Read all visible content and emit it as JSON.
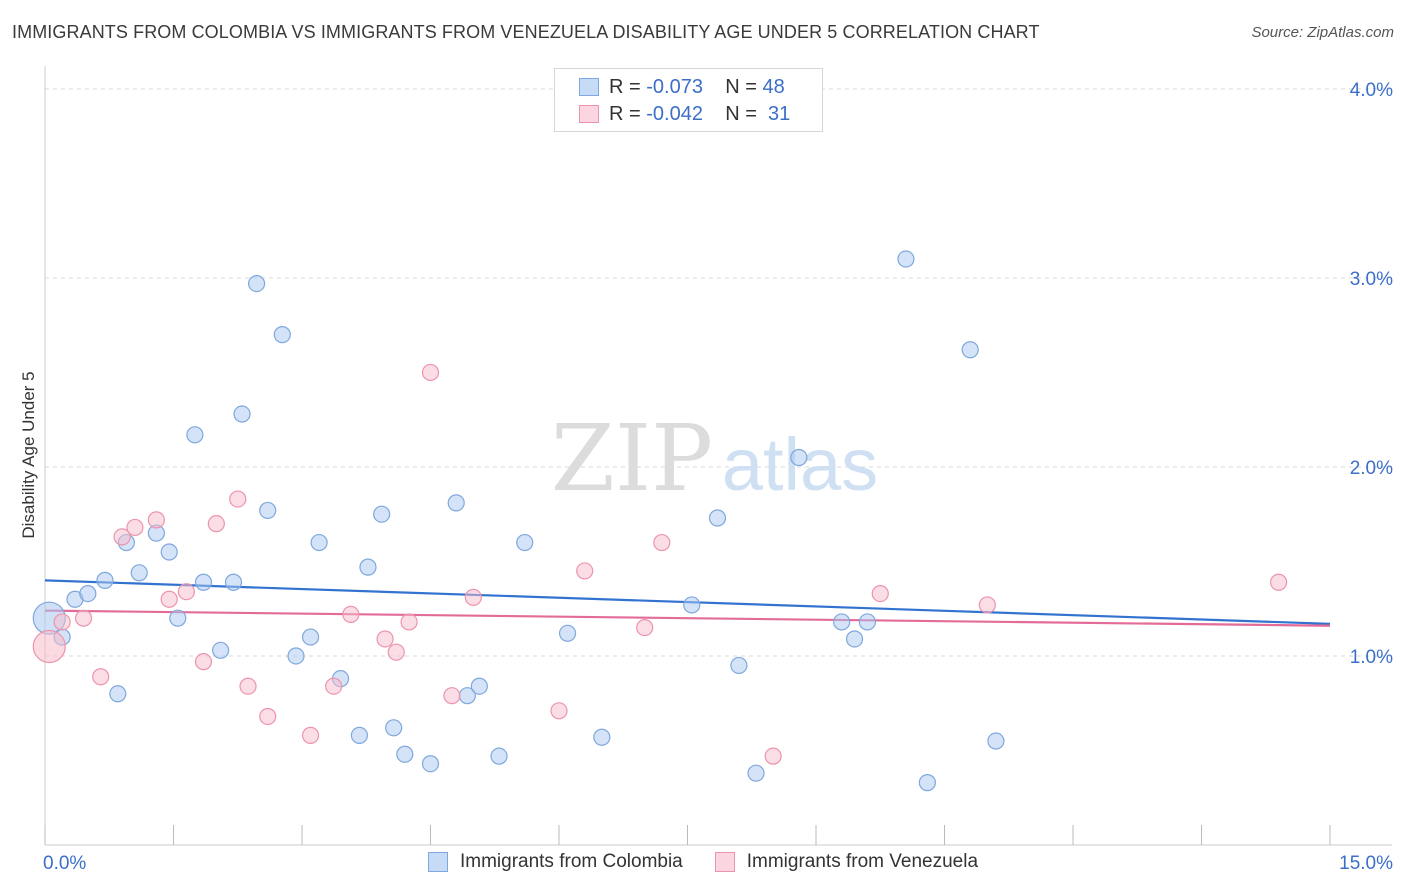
{
  "title": "IMMIGRANTS FROM COLOMBIA VS IMMIGRANTS FROM VENEZUELA DISABILITY AGE UNDER 5 CORRELATION CHART",
  "source": "Source: ZipAtlas.com",
  "watermark": {
    "zip": "ZIP",
    "atlas": "atlas"
  },
  "legend": {
    "colombia": {
      "r_label": "R =",
      "r_value": "-0.073",
      "n_label": "N =",
      "n_value": "48"
    },
    "venezuela": {
      "r_label": "R =",
      "r_value": "-0.042",
      "n_label": "N =",
      "n_value": "31"
    }
  },
  "colors": {
    "colombia_fill": "#a9c8f0",
    "colombia_stroke": "#7fa8dd",
    "colombia_line": "#3373d0",
    "venezuela_fill": "#f7bccb",
    "venezuela_stroke": "#ec94ad",
    "venezuela_line": "#e36b98",
    "tick_label": "#3b6fc9",
    "grid": "#d9d9d9"
  },
  "chart_data": {
    "type": "scatter",
    "title": "IMMIGRANTS FROM COLOMBIA VS IMMIGRANTS FROM VENEZUELA DISABILITY AGE UNDER 5 CORRELATION CHART",
    "xlabel": "",
    "ylabel": "Disability Age Under 5",
    "xlim": [
      0,
      15
    ],
    "ylim": [
      0,
      4.1
    ],
    "x_tick_labels": [
      "0.0%",
      "15.0%"
    ],
    "y_ticks": [
      1,
      2,
      3,
      4
    ],
    "y_tick_labels": [
      "1.0%",
      "2.0%",
      "3.0%",
      "4.0%"
    ],
    "series": [
      {
        "name": "Immigrants from Colombia",
        "color": "colombia",
        "trend": [
          [
            0,
            1.4
          ],
          [
            15,
            1.17
          ]
        ],
        "points": [
          [
            0.05,
            1.2
          ],
          [
            0.2,
            1.1
          ],
          [
            0.35,
            1.3
          ],
          [
            0.5,
            1.33
          ],
          [
            0.7,
            1.4
          ],
          [
            0.85,
            0.8
          ],
          [
            0.95,
            1.6
          ],
          [
            1.1,
            1.44
          ],
          [
            1.3,
            1.65
          ],
          [
            1.45,
            1.55
          ],
          [
            1.55,
            1.2
          ],
          [
            1.75,
            2.17
          ],
          [
            1.85,
            1.39
          ],
          [
            2.05,
            1.03
          ],
          [
            2.2,
            1.39
          ],
          [
            2.3,
            2.28
          ],
          [
            2.47,
            2.97
          ],
          [
            2.6,
            1.77
          ],
          [
            2.77,
            2.7
          ],
          [
            2.93,
            1.0
          ],
          [
            3.1,
            1.1
          ],
          [
            3.2,
            1.6
          ],
          [
            3.45,
            0.88
          ],
          [
            3.67,
            0.58
          ],
          [
            3.77,
            1.47
          ],
          [
            3.93,
            1.75
          ],
          [
            4.07,
            0.62
          ],
          [
            4.2,
            0.48
          ],
          [
            4.5,
            0.43
          ],
          [
            4.8,
            1.81
          ],
          [
            4.93,
            0.79
          ],
          [
            5.07,
            0.84
          ],
          [
            5.3,
            0.47
          ],
          [
            5.6,
            1.6
          ],
          [
            6.1,
            1.12
          ],
          [
            6.5,
            0.57
          ],
          [
            7.55,
            1.27
          ],
          [
            7.85,
            1.73
          ],
          [
            8.1,
            0.95
          ],
          [
            8.3,
            0.38
          ],
          [
            8.8,
            2.05
          ],
          [
            9.3,
            1.18
          ],
          [
            9.45,
            1.09
          ],
          [
            9.6,
            1.18
          ],
          [
            10.05,
            3.1
          ],
          [
            10.3,
            0.33
          ],
          [
            10.8,
            2.62
          ],
          [
            11.1,
            0.55
          ]
        ]
      },
      {
        "name": "Immigrants from Venezuela",
        "color": "venezuela",
        "trend": [
          [
            0,
            1.24
          ],
          [
            15,
            1.16
          ]
        ],
        "points": [
          [
            0.05,
            1.05
          ],
          [
            0.2,
            1.18
          ],
          [
            0.45,
            1.2
          ],
          [
            0.65,
            0.89
          ],
          [
            0.9,
            1.63
          ],
          [
            1.05,
            1.68
          ],
          [
            1.3,
            1.72
          ],
          [
            1.45,
            1.3
          ],
          [
            1.65,
            1.34
          ],
          [
            1.85,
            0.97
          ],
          [
            2.0,
            1.7
          ],
          [
            2.25,
            1.83
          ],
          [
            2.37,
            0.84
          ],
          [
            2.6,
            0.68
          ],
          [
            3.1,
            0.58
          ],
          [
            3.37,
            0.84
          ],
          [
            3.57,
            1.22
          ],
          [
            3.97,
            1.09
          ],
          [
            4.1,
            1.02
          ],
          [
            4.25,
            1.18
          ],
          [
            4.5,
            2.5
          ],
          [
            4.75,
            0.79
          ],
          [
            5.0,
            1.31
          ],
          [
            6.0,
            0.71
          ],
          [
            6.3,
            1.45
          ],
          [
            7.0,
            1.15
          ],
          [
            7.2,
            1.6
          ],
          [
            8.5,
            0.47
          ],
          [
            9.75,
            1.33
          ],
          [
            11.0,
            1.27
          ],
          [
            14.4,
            1.39
          ]
        ]
      }
    ]
  },
  "bottom_legend": [
    "Immigrants from Colombia",
    "Immigrants from Venezuela"
  ]
}
